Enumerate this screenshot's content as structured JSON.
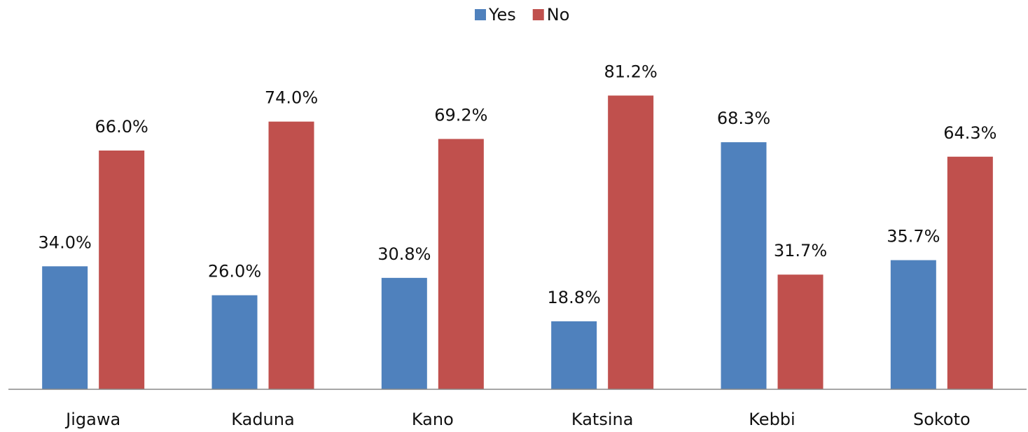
{
  "chart_data": {
    "type": "bar",
    "categories": [
      "Jigawa",
      "Kaduna",
      "Kano",
      "Katsina",
      "Kebbi",
      "Sokoto"
    ],
    "series": [
      {
        "name": "Yes",
        "color": "#4f81bd",
        "values": [
          34.0,
          26.0,
          30.8,
          18.8,
          68.3,
          35.7
        ],
        "value_labels": [
          "34.0%",
          "26.0%",
          "30.8%",
          "18.8%",
          "68.3%",
          "35.7%"
        ]
      },
      {
        "name": "No",
        "color": "#c0504d",
        "values": [
          66.0,
          74.0,
          69.2,
          81.2,
          31.7,
          64.3
        ],
        "value_labels": [
          "66.0%",
          "74.0%",
          "69.2%",
          "81.2%",
          "31.7%",
          "64.3%"
        ]
      }
    ],
    "ylim": [
      0,
      90
    ],
    "legend": "top"
  }
}
